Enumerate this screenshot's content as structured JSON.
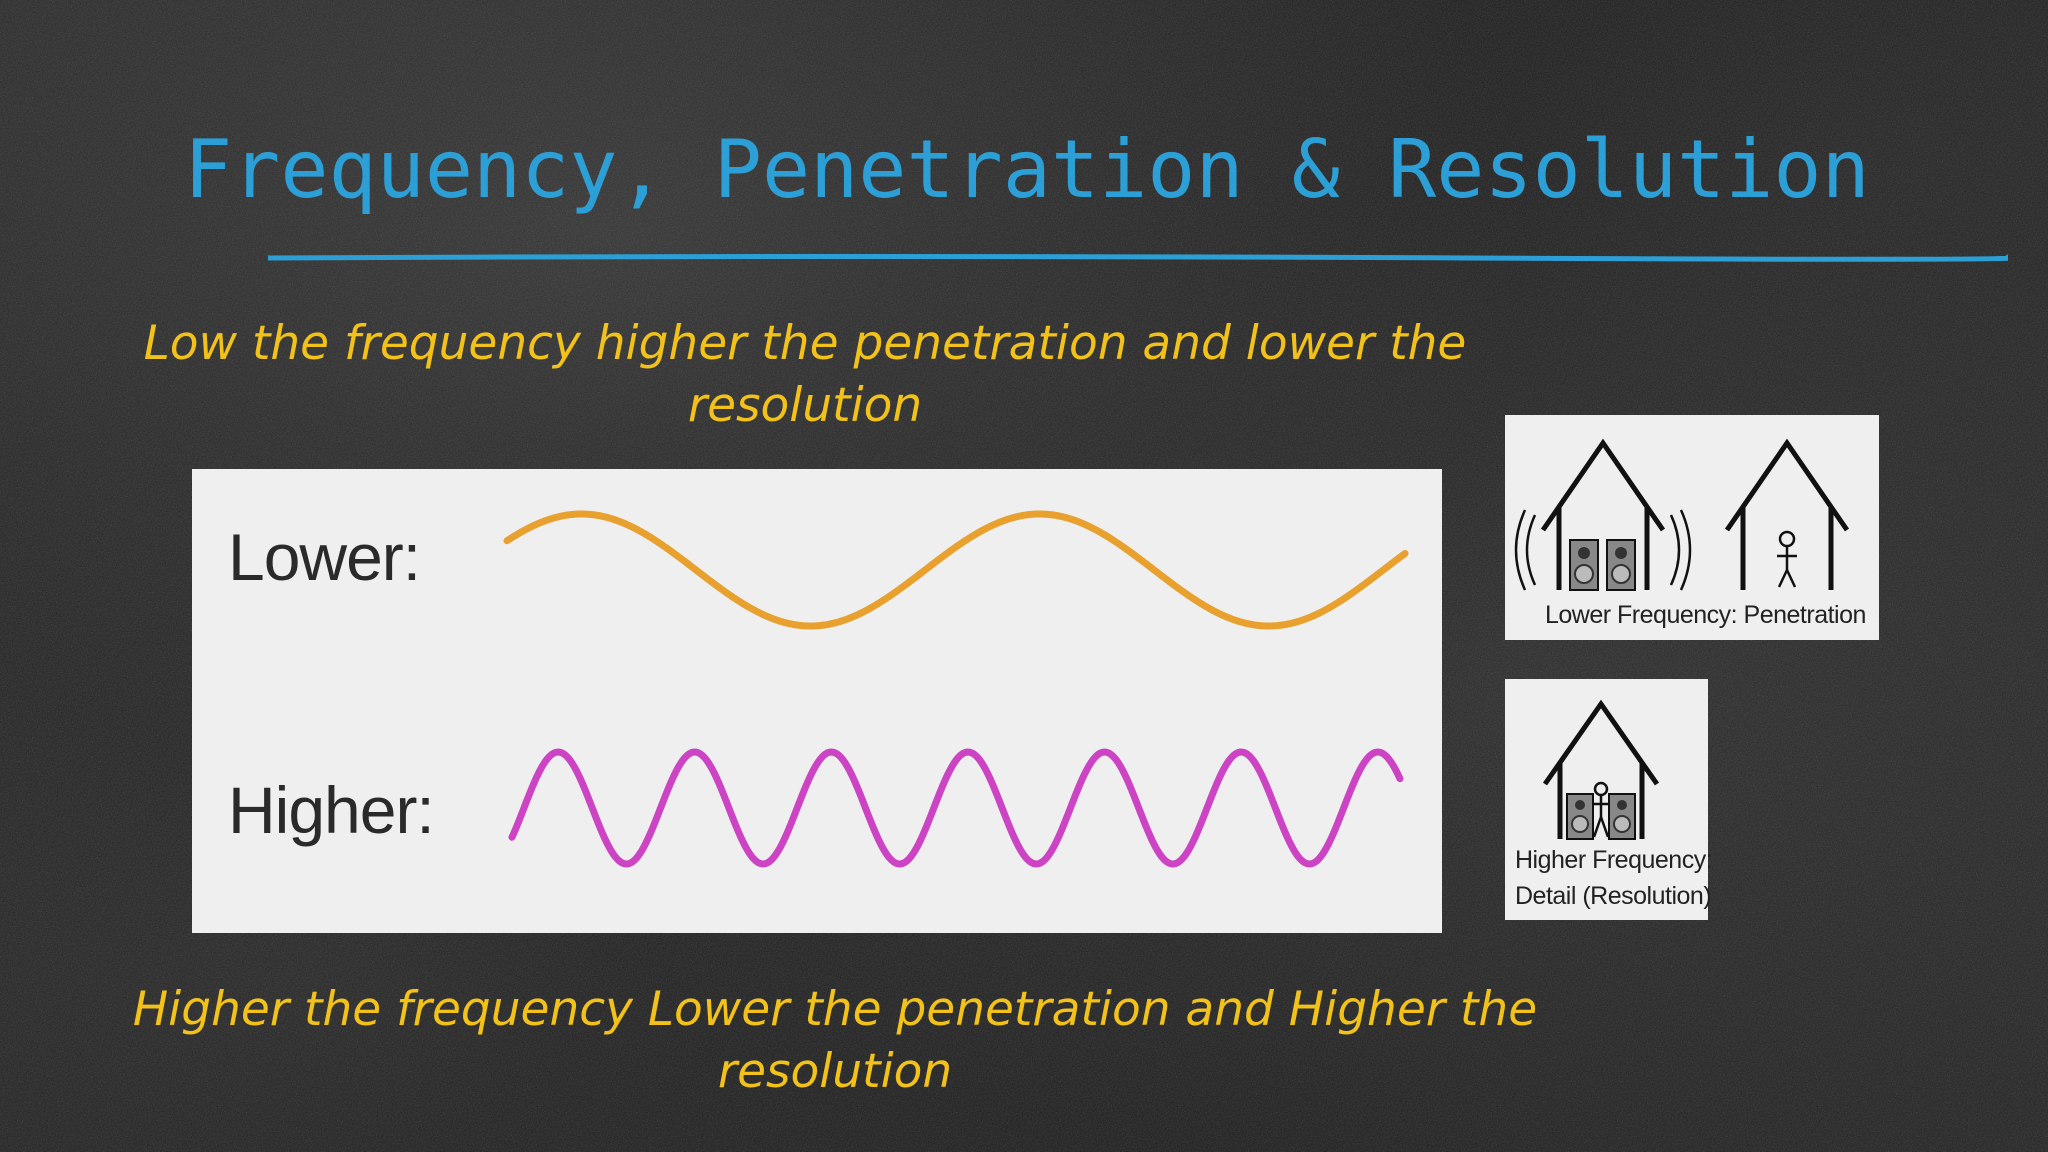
{
  "slide": {
    "title": "Frequency, Penetration & Resolution",
    "caption_top_line1": "Low the frequency higher the penetration and lower the",
    "caption_top_line2": "resolution",
    "caption_bottom_line1": "Higher the frequency Lower the penetration and Higher the",
    "caption_bottom_line2": "resolution"
  },
  "waves": {
    "lower_label": "Lower:",
    "higher_label": "Higher:",
    "lower_color": "#e8a12e",
    "higher_color": "#cc44c4",
    "lower_cycles": 2,
    "higher_cycles": 6.5
  },
  "houses": {
    "lower_caption": "Lower Frequency: Penetration",
    "higher_caption_line1": "Higher Frequency:",
    "higher_caption_line2": "Detail (Resolution)"
  },
  "colors": {
    "title": "#2c9fd6",
    "caption": "#f2c21a",
    "rule": "#2c9fd6",
    "panel": "#efefef"
  }
}
